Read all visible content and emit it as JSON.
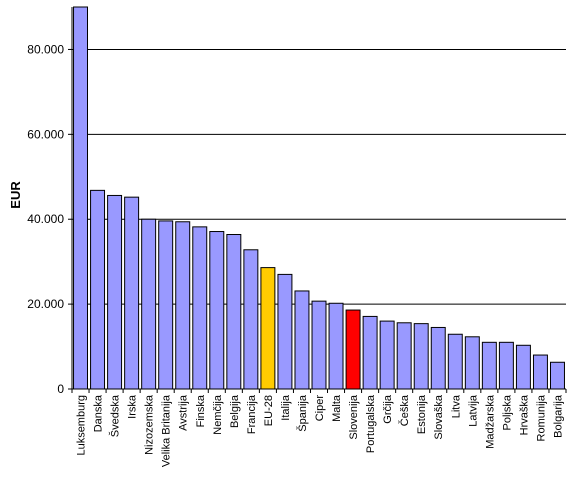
{
  "chart_data": {
    "type": "bar",
    "title": "",
    "xlabel": "",
    "ylabel": "EUR",
    "ylim": [
      0,
      90000
    ],
    "y_ticks": [
      0,
      20000,
      40000,
      60000,
      80000
    ],
    "y_tick_labels": [
      "0",
      "20.000",
      "40.000",
      "60.000",
      "80.000"
    ],
    "grid": true,
    "legend": "none",
    "categories": [
      "Luksemburg",
      "Danska",
      "Švedska",
      "Irska",
      "Nizozemska",
      "Velika Britanija",
      "Avstrija",
      "Finska",
      "Nemčija",
      "Belgija",
      "Francija",
      "EU-28",
      "Italija",
      "Španija",
      "Ciper",
      "Malta",
      "Slovenija",
      "Portugalska",
      "Grčija",
      "Češka",
      "Estonija",
      "Slovaška",
      "Litva",
      "Latvija",
      "Madžarska",
      "Poljska",
      "Hrvaška",
      "Romunija",
      "Bolgarija"
    ],
    "values": [
      90000,
      46800,
      45600,
      45200,
      40000,
      39600,
      39400,
      38200,
      37100,
      36400,
      32800,
      28600,
      27000,
      23100,
      20700,
      20200,
      18600,
      17100,
      16000,
      15600,
      15400,
      14500,
      12900,
      12300,
      11000,
      11000,
      10300,
      8000,
      6300
    ],
    "colors": {
      "default": "#9999ff",
      "EU-28": "#ffcc00",
      "Slovenija": "#ff0000",
      "outline": "#000000",
      "grid": "#000000"
    }
  }
}
